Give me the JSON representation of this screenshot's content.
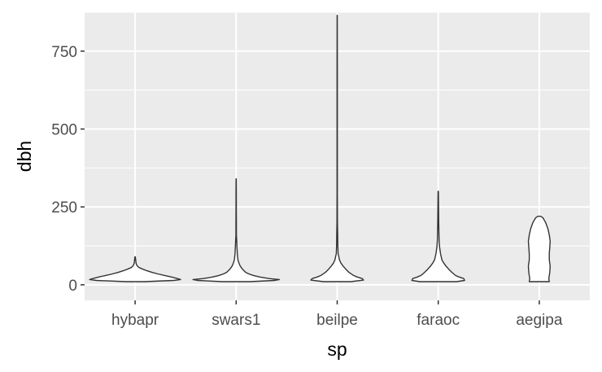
{
  "chart_data": {
    "type": "violin",
    "xlabel": "sp",
    "ylabel": "dbh",
    "categories": [
      "hybapr",
      "swars1",
      "beilpe",
      "faraoc",
      "aegipa"
    ],
    "ylim": [
      -50,
      875
    ],
    "yticks": [
      0,
      250,
      500,
      750
    ],
    "grid": true,
    "colors": {
      "panel": "#ebebeb",
      "grid": "#ffffff",
      "outline": "#333333",
      "fill": "#ffffff"
    },
    "series": [
      {
        "category": "hybapr",
        "profile": [
          [
            10,
            0.2
          ],
          [
            14,
            0.85
          ],
          [
            17,
            1.0
          ],
          [
            20,
            0.93
          ],
          [
            25,
            0.8
          ],
          [
            30,
            0.65
          ],
          [
            35,
            0.5
          ],
          [
            40,
            0.37
          ],
          [
            45,
            0.26
          ],
          [
            50,
            0.17
          ],
          [
            55,
            0.09
          ],
          [
            60,
            0.05
          ],
          [
            65,
            0.03
          ],
          [
            70,
            0.02
          ],
          [
            80,
            0.012
          ],
          [
            90,
            0.004
          ]
        ]
      },
      {
        "category": "swars1",
        "profile": [
          [
            10,
            0.3
          ],
          [
            14,
            0.85
          ],
          [
            17,
            0.95
          ],
          [
            20,
            0.72
          ],
          [
            25,
            0.52
          ],
          [
            30,
            0.38
          ],
          [
            35,
            0.28
          ],
          [
            40,
            0.21
          ],
          [
            50,
            0.14
          ],
          [
            60,
            0.09
          ],
          [
            70,
            0.06
          ],
          [
            80,
            0.04
          ],
          [
            100,
            0.025
          ],
          [
            120,
            0.018
          ],
          [
            140,
            0.012
          ],
          [
            160,
            0.006
          ],
          [
            200,
            0.005
          ],
          [
            250,
            0.004
          ],
          [
            300,
            0.003
          ],
          [
            340,
            0.002
          ]
        ]
      },
      {
        "category": "beilpe",
        "profile": [
          [
            10,
            0.3
          ],
          [
            15,
            0.58
          ],
          [
            20,
            0.55
          ],
          [
            25,
            0.44
          ],
          [
            30,
            0.36
          ],
          [
            40,
            0.26
          ],
          [
            50,
            0.19
          ],
          [
            60,
            0.13
          ],
          [
            70,
            0.08
          ],
          [
            80,
            0.05
          ],
          [
            90,
            0.035
          ],
          [
            100,
            0.02
          ],
          [
            130,
            0.012
          ],
          [
            160,
            0.01
          ],
          [
            200,
            0.006
          ],
          [
            300,
            0.004
          ],
          [
            500,
            0.003
          ],
          [
            700,
            0.003
          ],
          [
            865,
            0.002
          ]
        ]
      },
      {
        "category": "faraoc",
        "profile": [
          [
            10,
            0.4
          ],
          [
            14,
            0.58
          ],
          [
            20,
            0.56
          ],
          [
            25,
            0.46
          ],
          [
            30,
            0.38
          ],
          [
            40,
            0.3
          ],
          [
            50,
            0.23
          ],
          [
            60,
            0.17
          ],
          [
            70,
            0.12
          ],
          [
            80,
            0.08
          ],
          [
            100,
            0.05
          ],
          [
            120,
            0.03
          ],
          [
            140,
            0.02
          ],
          [
            170,
            0.014
          ],
          [
            200,
            0.01
          ],
          [
            250,
            0.007
          ],
          [
            300,
            0.003
          ]
        ]
      },
      {
        "category": "aegipa",
        "profile": [
          [
            10,
            0.22
          ],
          [
            20,
            0.21
          ],
          [
            40,
            0.23
          ],
          [
            60,
            0.24
          ],
          [
            80,
            0.22
          ],
          [
            100,
            0.22
          ],
          [
            120,
            0.23
          ],
          [
            140,
            0.24
          ],
          [
            160,
            0.22
          ],
          [
            180,
            0.19
          ],
          [
            200,
            0.14
          ],
          [
            215,
            0.08
          ],
          [
            220,
            0.03
          ]
        ]
      }
    ]
  }
}
